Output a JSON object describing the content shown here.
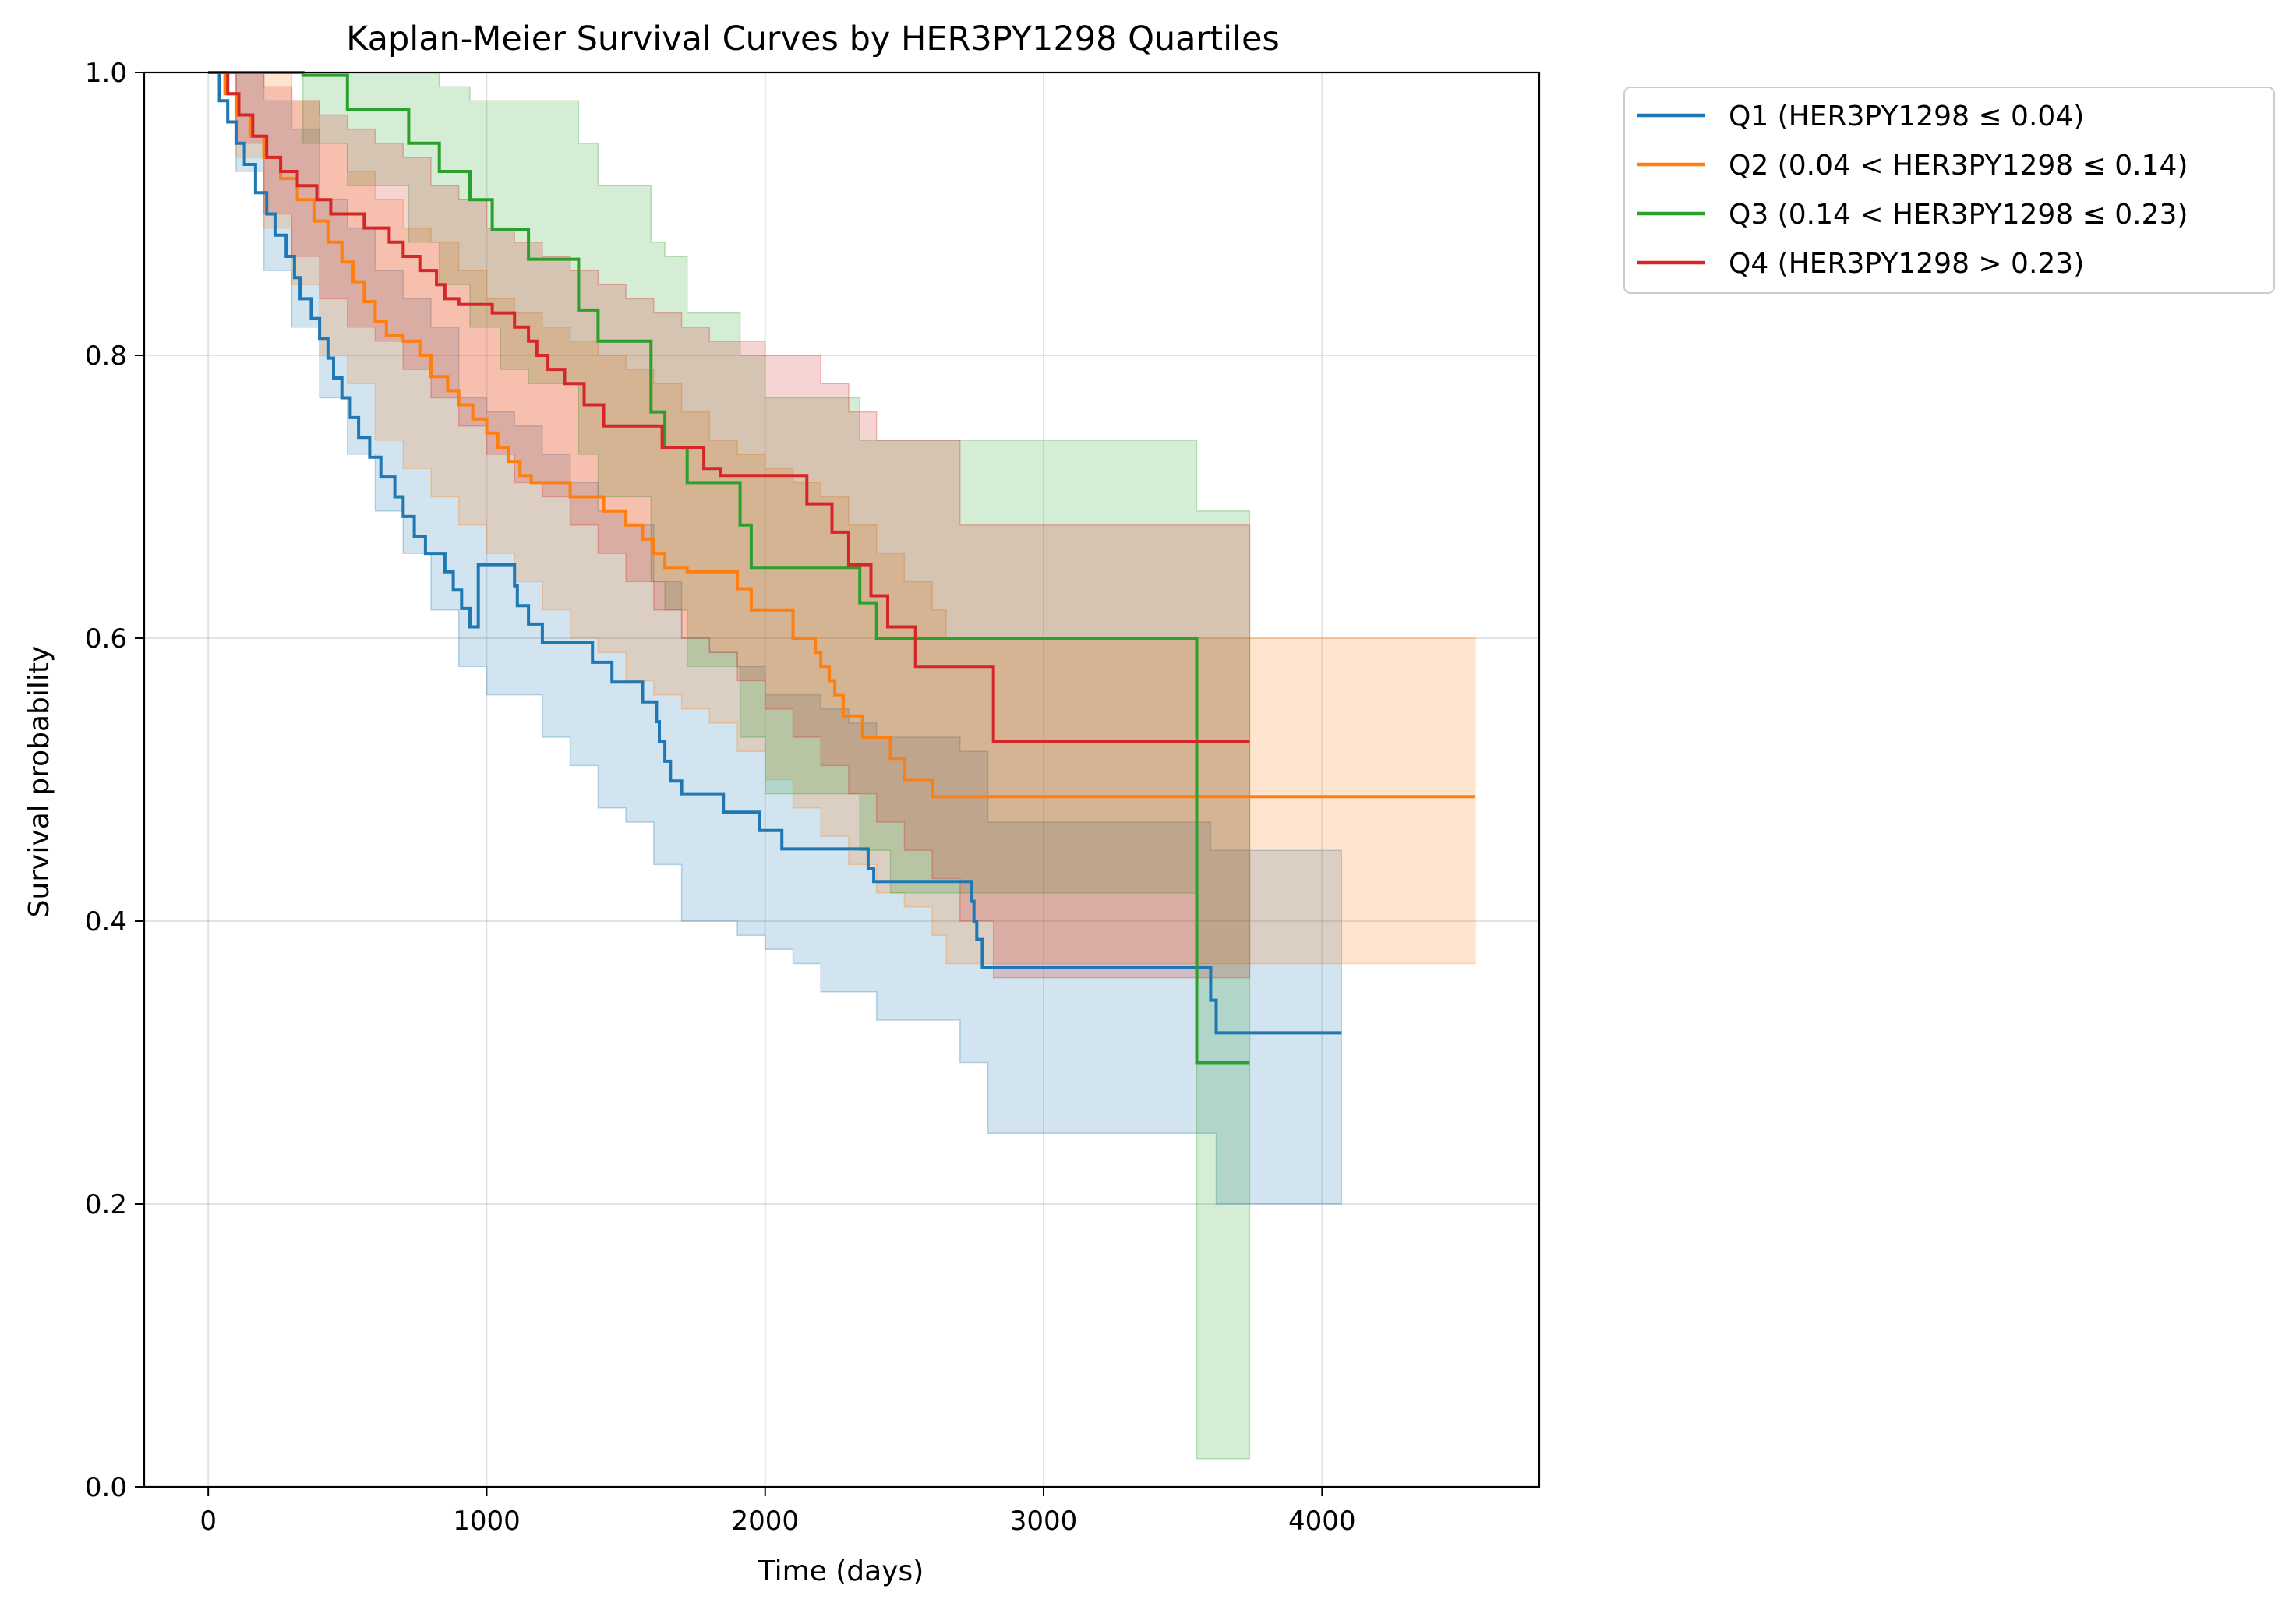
{
  "chart_data": {
    "type": "line",
    "subtype": "kaplan-meier step curves with confidence bands",
    "title": "Kaplan-Meier Survival Curves by HER3PY1298 Quartiles",
    "xlabel": "Time (days)",
    "ylabel": "Survival probability",
    "xlim": [
      -230,
      4780
    ],
    "ylim": [
      0.0,
      1.0
    ],
    "x_ticks": [
      0,
      1000,
      2000,
      3000,
      4000
    ],
    "x_tick_labels": [
      "0",
      "1000",
      "2000",
      "3000",
      "4000"
    ],
    "y_ticks": [
      0.0,
      0.2,
      0.4,
      0.6,
      0.8,
      1.0
    ],
    "y_tick_labels": [
      "0.0",
      "0.2",
      "0.4",
      "0.6",
      "0.8",
      "1.0"
    ],
    "grid": true,
    "legend_position": "outside upper-right",
    "series": [
      {
        "name": "Q1 (HER3PY1298 ≤ 0.04)",
        "color": "#1f77b4",
        "x": [
          0,
          40,
          70,
          100,
          130,
          170,
          210,
          240,
          280,
          310,
          330,
          370,
          400,
          430,
          450,
          480,
          510,
          540,
          580,
          620,
          670,
          700,
          740,
          780,
          820,
          850,
          880,
          910,
          940,
          970,
          1100,
          1100,
          1110,
          1150,
          1200,
          1270,
          1380,
          1450,
          1500,
          1560,
          1610,
          1620,
          1640,
          1660,
          1700,
          1800,
          1850,
          1980,
          2060,
          2150,
          2250,
          2370,
          2390,
          2500,
          2600,
          2700,
          2740,
          2750,
          2760,
          2780,
          2960,
          3580,
          3600,
          3620,
          4070
        ],
        "y": [
          1.0,
          0.98,
          0.965,
          0.95,
          0.935,
          0.915,
          0.9,
          0.885,
          0.87,
          0.855,
          0.84,
          0.826,
          0.812,
          0.798,
          0.784,
          0.77,
          0.756,
          0.742,
          0.728,
          0.714,
          0.7,
          0.686,
          0.672,
          0.66,
          0.66,
          0.647,
          0.634,
          0.621,
          0.608,
          0.652,
          0.652,
          0.637,
          0.623,
          0.61,
          0.597,
          0.597,
          0.583,
          0.569,
          0.569,
          0.555,
          0.541,
          0.527,
          0.513,
          0.499,
          0.49,
          0.49,
          0.477,
          0.464,
          0.451,
          0.451,
          0.451,
          0.437,
          0.428,
          0.428,
          0.428,
          0.428,
          0.414,
          0.4,
          0.387,
          0.367,
          0.367,
          0.367,
          0.344,
          0.321,
          0.321
        ]
      },
      {
        "name": "Q2 (0.04 < HER3PY1298 ≤ 0.14)",
        "color": "#ff7f0e",
        "x": [
          0,
          60,
          100,
          150,
          200,
          260,
          320,
          380,
          430,
          480,
          520,
          560,
          600,
          640,
          700,
          760,
          800,
          860,
          900,
          950,
          1000,
          1040,
          1080,
          1120,
          1160,
          1200,
          1250,
          1300,
          1420,
          1500,
          1560,
          1600,
          1640,
          1680,
          1720,
          1900,
          1950,
          2000,
          2030,
          2100,
          2150,
          2180,
          2200,
          2230,
          2250,
          2280,
          2350,
          2450,
          2500,
          2600,
          2650,
          4550
        ],
        "y": [
          1.0,
          0.985,
          0.97,
          0.955,
          0.94,
          0.925,
          0.91,
          0.895,
          0.88,
          0.866,
          0.852,
          0.838,
          0.824,
          0.814,
          0.81,
          0.8,
          0.785,
          0.775,
          0.765,
          0.755,
          0.745,
          0.735,
          0.725,
          0.715,
          0.71,
          0.71,
          0.71,
          0.7,
          0.69,
          0.68,
          0.67,
          0.66,
          0.65,
          0.65,
          0.647,
          0.635,
          0.62,
          0.62,
          0.62,
          0.6,
          0.6,
          0.59,
          0.58,
          0.57,
          0.56,
          0.545,
          0.53,
          0.515,
          0.5,
          0.488,
          0.488,
          0.488
        ]
      },
      {
        "name": "Q3 (0.14 < HER3PY1298 ≤ 0.23)",
        "color": "#2ca02c",
        "x": [
          0,
          340,
          500,
          720,
          830,
          940,
          1020,
          1060,
          1150,
          1330,
          1400,
          1590,
          1640,
          1720,
          1910,
          1950,
          2150,
          2340,
          2400,
          2450,
          3550,
          3630,
          3740
        ],
        "y": [
          1.0,
          0.998,
          0.974,
          0.95,
          0.93,
          0.91,
          0.889,
          0.889,
          0.868,
          0.832,
          0.81,
          0.76,
          0.735,
          0.71,
          0.68,
          0.65,
          0.65,
          0.625,
          0.6,
          0.6,
          0.3,
          0.3,
          0.3
        ]
      },
      {
        "name": "Q4 (HER3PY1298 > 0.23)",
        "color": "#d62728",
        "x": [
          0,
          70,
          110,
          160,
          210,
          260,
          320,
          390,
          440,
          560,
          650,
          700,
          760,
          820,
          850,
          900,
          1020,
          1100,
          1150,
          1180,
          1220,
          1280,
          1350,
          1420,
          1540,
          1630,
          1720,
          1780,
          1840,
          1870,
          1920,
          2080,
          2150,
          2240,
          2300,
          2380,
          2440,
          2540,
          2820,
          3740
        ],
        "y": [
          1.0,
          0.985,
          0.97,
          0.955,
          0.94,
          0.93,
          0.92,
          0.91,
          0.9,
          0.89,
          0.88,
          0.87,
          0.86,
          0.85,
          0.84,
          0.836,
          0.83,
          0.82,
          0.81,
          0.8,
          0.79,
          0.78,
          0.765,
          0.75,
          0.75,
          0.735,
          0.735,
          0.72,
          0.715,
          0.715,
          0.715,
          0.715,
          0.695,
          0.675,
          0.652,
          0.63,
          0.608,
          0.58,
          0.527,
          0.527
        ]
      }
    ],
    "confidence_bands": [
      {
        "series": "Q1 (HER3PY1298 ≤ 0.04)",
        "color": "#1f77b4",
        "x": [
          0,
          100,
          200,
          300,
          400,
          500,
          600,
          700,
          800,
          900,
          1000,
          1100,
          1200,
          1300,
          1400,
          1500,
          1600,
          1700,
          1800,
          1900,
          2000,
          2100,
          2200,
          2300,
          2400,
          2500,
          2600,
          2700,
          2750,
          2800,
          2900,
          3000,
          3100,
          3200,
          3300,
          3400,
          3500,
          3600,
          3620,
          3700,
          3800,
          3900,
          4000,
          4070
        ],
        "lower": [
          1.0,
          0.93,
          0.86,
          0.82,
          0.77,
          0.73,
          0.69,
          0.66,
          0.62,
          0.58,
          0.56,
          0.56,
          0.53,
          0.51,
          0.48,
          0.47,
          0.44,
          0.4,
          0.4,
          0.39,
          0.38,
          0.37,
          0.35,
          0.35,
          0.33,
          0.33,
          0.33,
          0.3,
          0.3,
          0.25,
          0.25,
          0.25,
          0.25,
          0.25,
          0.25,
          0.25,
          0.25,
          0.25,
          0.2,
          0.2,
          0.2,
          0.2,
          0.2,
          0.2
        ],
        "upper": [
          1.0,
          1.0,
          0.98,
          0.96,
          0.91,
          0.89,
          0.86,
          0.84,
          0.82,
          0.77,
          0.76,
          0.75,
          0.73,
          0.71,
          0.69,
          0.68,
          0.64,
          0.6,
          0.59,
          0.58,
          0.56,
          0.56,
          0.55,
          0.54,
          0.53,
          0.53,
          0.53,
          0.52,
          0.52,
          0.47,
          0.47,
          0.47,
          0.47,
          0.47,
          0.47,
          0.47,
          0.47,
          0.45,
          0.45,
          0.45,
          0.45,
          0.45,
          0.45,
          0.45
        ]
      },
      {
        "series": "Q2 (0.04 < HER3PY1298 ≤ 0.14)",
        "color": "#ff7f0e",
        "x": [
          0,
          100,
          200,
          300,
          400,
          500,
          600,
          700,
          800,
          900,
          1000,
          1100,
          1200,
          1300,
          1400,
          1500,
          1600,
          1700,
          1800,
          1900,
          2000,
          2100,
          2200,
          2300,
          2400,
          2500,
          2600,
          2650,
          2700,
          3000,
          3500,
          4000,
          4550
        ],
        "lower": [
          1.0,
          0.94,
          0.89,
          0.85,
          0.8,
          0.78,
          0.74,
          0.72,
          0.7,
          0.68,
          0.66,
          0.64,
          0.62,
          0.6,
          0.59,
          0.57,
          0.56,
          0.55,
          0.54,
          0.52,
          0.5,
          0.48,
          0.46,
          0.44,
          0.42,
          0.41,
          0.39,
          0.37,
          0.37,
          0.37,
          0.37,
          0.37,
          0.37
        ],
        "upper": [
          1.0,
          1.0,
          1.0,
          0.98,
          0.95,
          0.93,
          0.91,
          0.89,
          0.88,
          0.86,
          0.84,
          0.83,
          0.82,
          0.81,
          0.8,
          0.79,
          0.78,
          0.76,
          0.74,
          0.73,
          0.72,
          0.71,
          0.7,
          0.68,
          0.66,
          0.64,
          0.62,
          0.6,
          0.6,
          0.6,
          0.6,
          0.6,
          0.6
        ]
      },
      {
        "series": "Q3 (0.14 < HER3PY1298 ≤ 0.23)",
        "color": "#2ca02c",
        "x": [
          0,
          340,
          500,
          720,
          830,
          940,
          1050,
          1150,
          1330,
          1400,
          1590,
          1640,
          1720,
          1910,
          2000,
          2150,
          2340,
          2450,
          2800,
          3000,
          3300,
          3550,
          3620,
          3740
        ],
        "lower": [
          1.0,
          0.95,
          0.92,
          0.88,
          0.85,
          0.82,
          0.79,
          0.78,
          0.73,
          0.7,
          0.64,
          0.62,
          0.58,
          0.53,
          0.49,
          0.49,
          0.45,
          0.42,
          0.42,
          0.42,
          0.42,
          0.02,
          0.02,
          0.02
        ],
        "upper": [
          1.0,
          1.0,
          1.0,
          1.0,
          0.99,
          0.98,
          0.98,
          0.98,
          0.95,
          0.92,
          0.88,
          0.87,
          0.83,
          0.8,
          0.77,
          0.77,
          0.74,
          0.74,
          0.74,
          0.74,
          0.74,
          0.69,
          0.69,
          0.69
        ]
      },
      {
        "series": "Q4 (HER3PY1298 > 0.23)",
        "color": "#d62728",
        "x": [
          0,
          100,
          200,
          300,
          400,
          500,
          600,
          700,
          800,
          900,
          1000,
          1100,
          1200,
          1300,
          1400,
          1500,
          1600,
          1700,
          1800,
          1900,
          2000,
          2100,
          2200,
          2300,
          2400,
          2500,
          2600,
          2700,
          2820,
          3000,
          3500,
          3740
        ],
        "lower": [
          1.0,
          0.95,
          0.9,
          0.87,
          0.84,
          0.82,
          0.81,
          0.79,
          0.77,
          0.75,
          0.73,
          0.71,
          0.7,
          0.68,
          0.66,
          0.64,
          0.62,
          0.6,
          0.59,
          0.57,
          0.55,
          0.53,
          0.51,
          0.49,
          0.47,
          0.45,
          0.43,
          0.4,
          0.36,
          0.36,
          0.36,
          0.36
        ],
        "upper": [
          1.0,
          1.0,
          0.99,
          0.98,
          0.97,
          0.96,
          0.95,
          0.94,
          0.92,
          0.91,
          0.89,
          0.88,
          0.87,
          0.86,
          0.85,
          0.84,
          0.83,
          0.82,
          0.81,
          0.81,
          0.8,
          0.8,
          0.78,
          0.76,
          0.74,
          0.74,
          0.74,
          0.68,
          0.68,
          0.68,
          0.68,
          0.68
        ]
      }
    ]
  }
}
